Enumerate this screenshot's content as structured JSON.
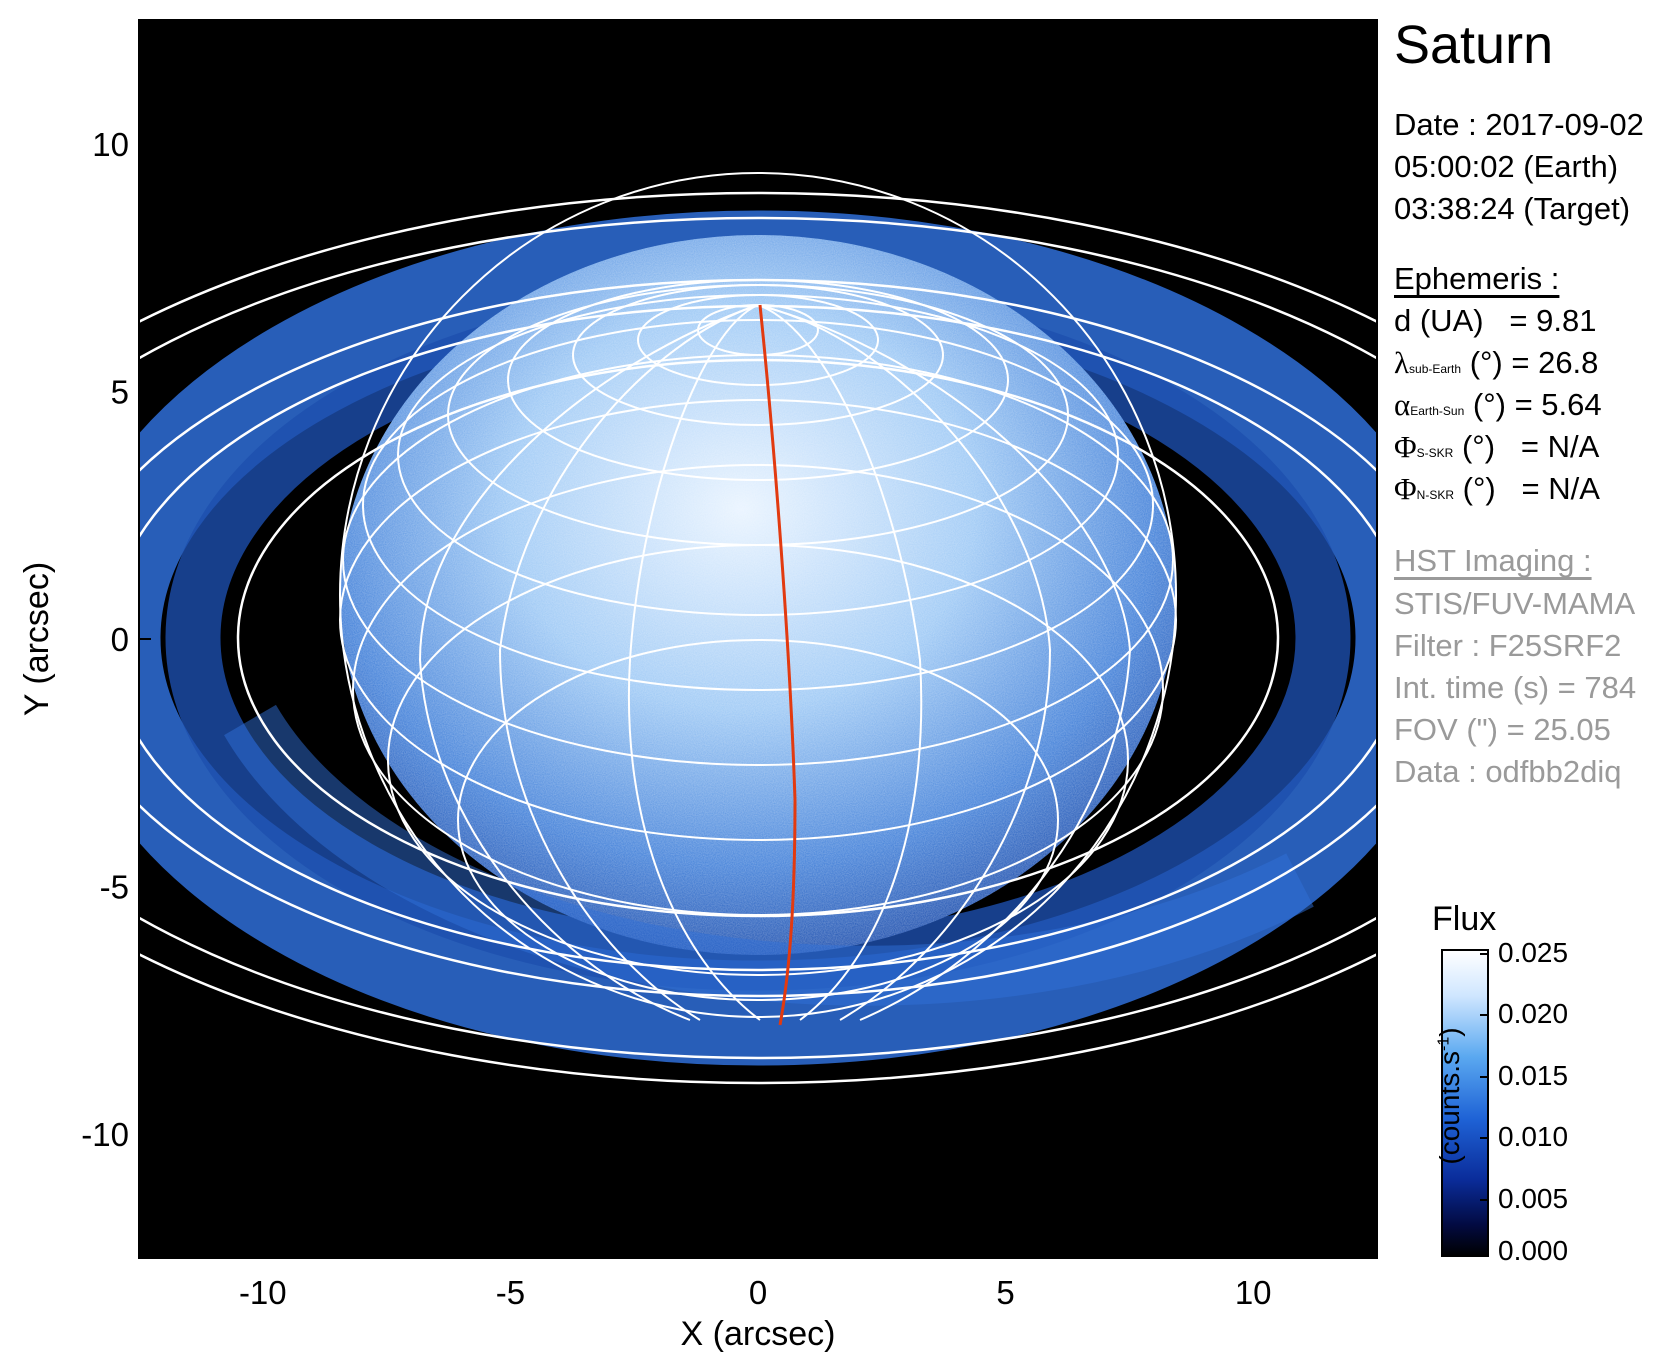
{
  "title": "Saturn",
  "date_lines": [
    "Date : 2017-09-02",
    "05:00:02 (Earth)",
    "03:38:24 (Target)"
  ],
  "ephemeris": {
    "header": "Ephemeris :",
    "d": {
      "label": "d (UA)",
      "value": "= 9.81"
    },
    "lambda": {
      "symbol": "λ",
      "sub": "sub-Earth",
      "unit": "(°)",
      "value": "= 26.8"
    },
    "alpha": {
      "symbol": "α",
      "sub": "Earth-Sun",
      "unit": "(°)",
      "value": "= 5.64"
    },
    "phi_s": {
      "symbol": "Φ",
      "sub": "S-SKR",
      "unit": "(°)",
      "value": "= N/A"
    },
    "phi_n": {
      "symbol": "Φ",
      "sub": "N-SKR",
      "unit": "(°)",
      "value": "= N/A"
    }
  },
  "hst": {
    "header": "HST Imaging :",
    "lines": [
      "STIS/FUV-MAMA",
      "Filter : F25SRF2",
      "Int. time (s) = 784",
      "FOV (\") = 25.05",
      "Data : odfbb2diq"
    ]
  },
  "axes": {
    "xlabel": "X (arcsec)",
    "ylabel": "Y (arcsec)",
    "xlim": [
      -12.5,
      12.5
    ],
    "ylim": [
      -12.5,
      12.5
    ],
    "xticks": [
      -10,
      -5,
      0,
      5,
      10
    ],
    "yticks": [
      10,
      5,
      0,
      -5,
      -10
    ],
    "xtick_labels": [
      "-10",
      "-5",
      "0",
      "5",
      "10"
    ],
    "ytick_labels": [
      "10",
      "5",
      "0",
      "-5",
      "-10"
    ]
  },
  "colorbar": {
    "title": "Flux",
    "units_main": "(counts.s",
    "units_sup": "-1",
    "units_close": ")",
    "ticks": [
      "0.025",
      "0.020",
      "0.015",
      "0.010",
      "0.005",
      "0.000"
    ],
    "colors": [
      "#ffffff",
      "#cfe6ff",
      "#5aa8f0",
      "#1f63d6",
      "#0a2c9a",
      "#020a40",
      "#000000"
    ]
  },
  "colors": {
    "background": "#000000",
    "grid": "#ffffff",
    "meridian": "#e23a10",
    "disk_center": "#d9ecff",
    "disk_edge": "#2b64c8",
    "rings": "#2f6fd8"
  }
}
